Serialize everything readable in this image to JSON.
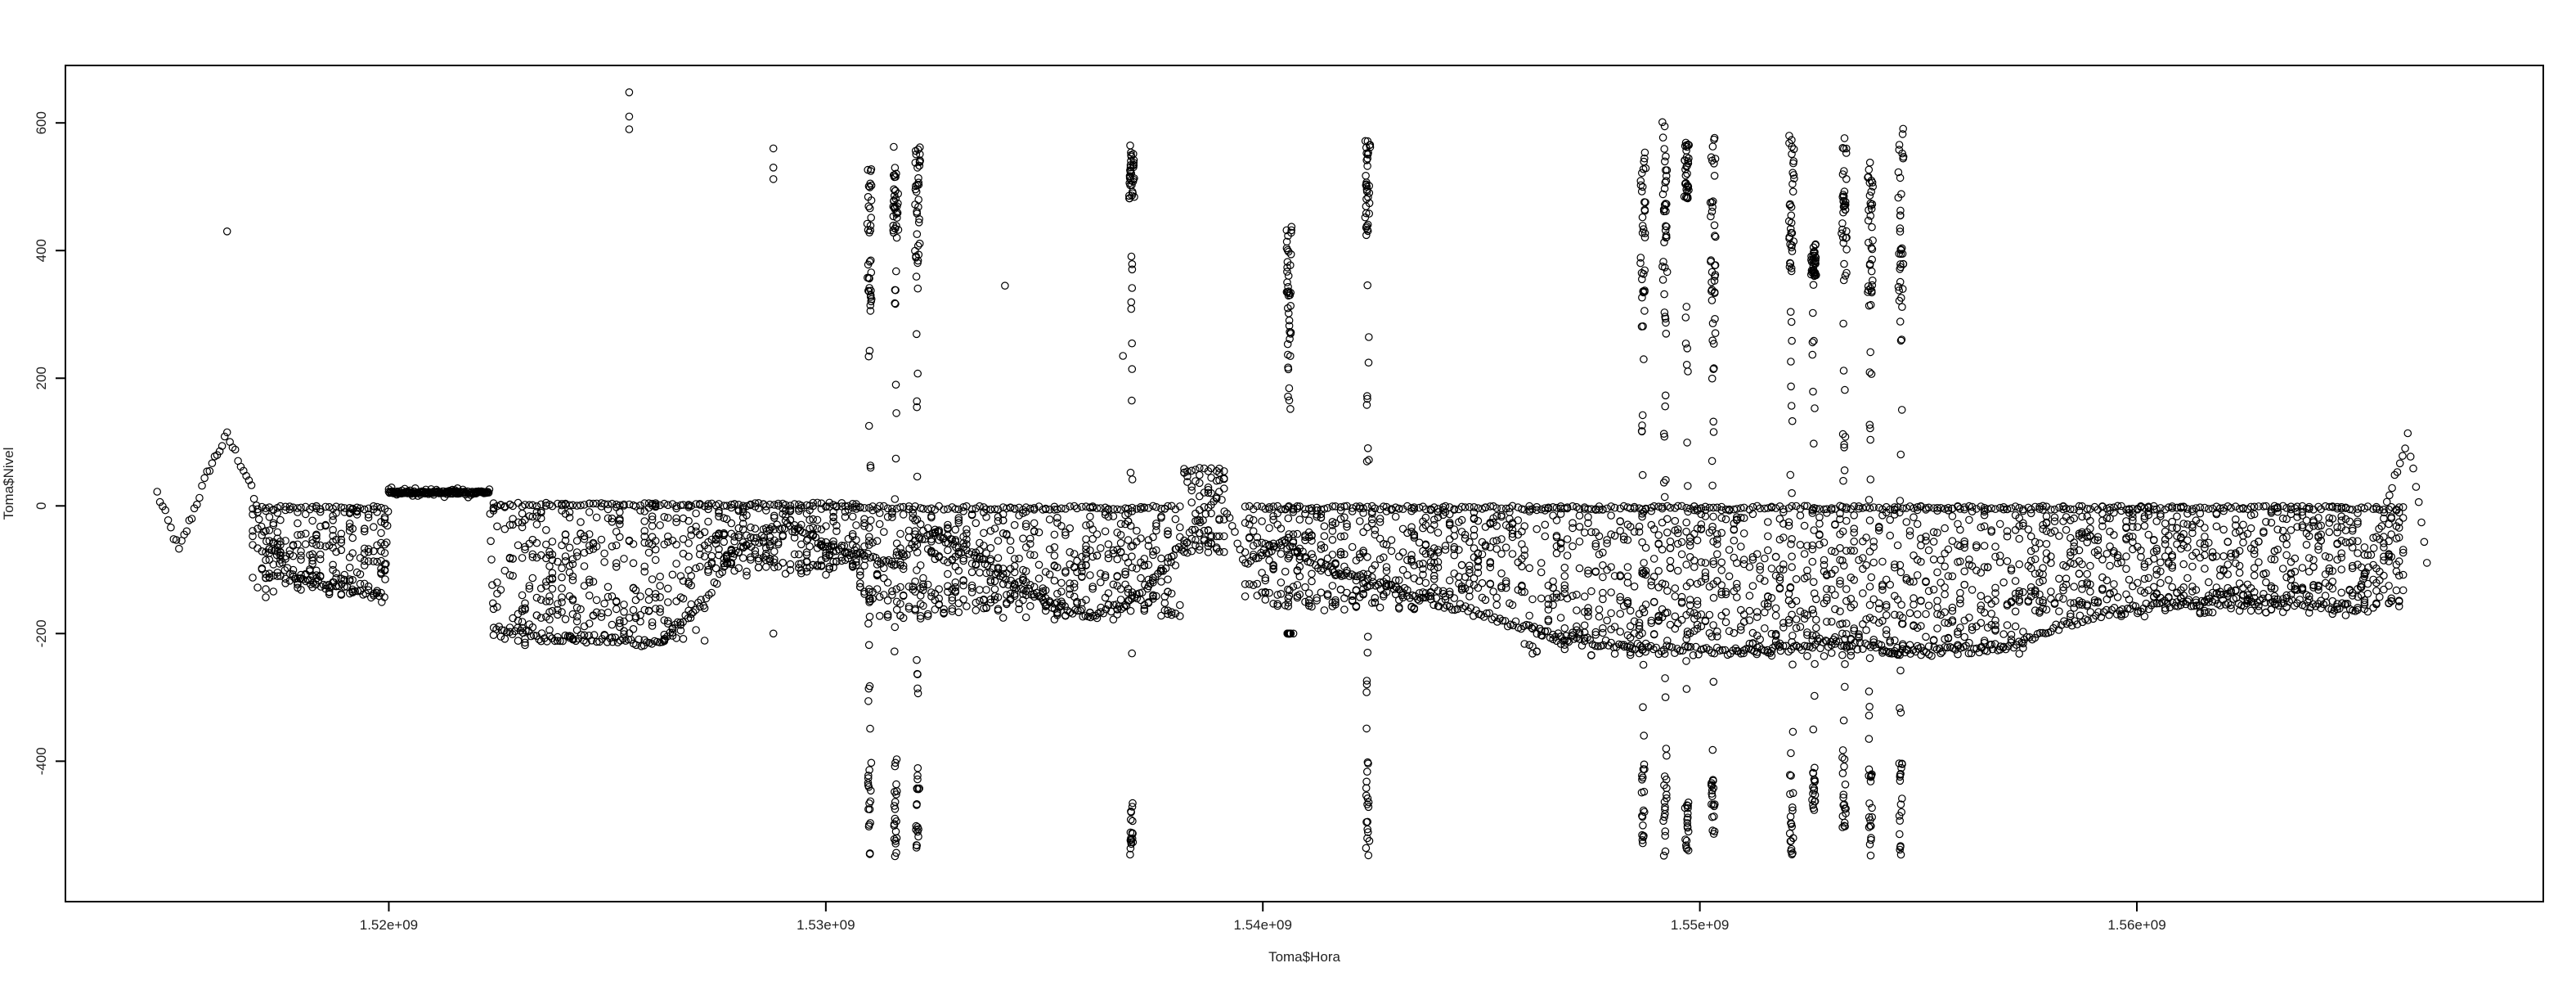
{
  "chart_data": {
    "type": "scatter",
    "title": "",
    "xlabel": "Toma$Hora",
    "ylabel": "Toma$Nivel",
    "xlim": [
      1512600000,
      1569300000
    ],
    "ylim": [
      -620,
      690
    ],
    "x_ticks": [
      {
        "value": 1520000000,
        "label": "1.52e+09"
      },
      {
        "value": 1530000000,
        "label": "1.53e+09"
      },
      {
        "value": 1540000000,
        "label": "1.54e+09"
      },
      {
        "value": 1550000000,
        "label": "1.55e+09"
      },
      {
        "value": 1560000000,
        "label": "1.56e+09"
      }
    ],
    "y_ticks": [
      {
        "value": -400,
        "label": "-400"
      },
      {
        "value": -200,
        "label": "-200"
      },
      {
        "value": 0,
        "label": "0"
      },
      {
        "value": 200,
        "label": "200"
      },
      {
        "value": 400,
        "label": "400"
      },
      {
        "value": 600,
        "label": "600"
      }
    ],
    "marker": "open-circle",
    "marker_color": "#000000",
    "grid": false,
    "legend": "none",
    "trend": [
      [
        1514700000,
        20
      ],
      [
        1515200000,
        -70
      ],
      [
        1515900000,
        60
      ],
      [
        1516300000,
        110
      ],
      [
        1516800000,
        40
      ],
      [
        1517200000,
        -60
      ],
      [
        1517800000,
        -110
      ],
      [
        1518800000,
        -125
      ],
      [
        1519900000,
        -145
      ],
      [
        1520000000,
        22
      ],
      [
        1522300000,
        20
      ],
      [
        1522400000,
        -190
      ],
      [
        1523500000,
        -205
      ],
      [
        1525000000,
        -210
      ],
      [
        1526200000,
        -215
      ],
      [
        1527200000,
        -150
      ],
      [
        1528000000,
        -70
      ],
      [
        1529000000,
        -30
      ],
      [
        1530000000,
        -60
      ],
      [
        1531500000,
        -90
      ],
      [
        1532500000,
        -40
      ],
      [
        1534000000,
        -110
      ],
      [
        1535000000,
        -150
      ],
      [
        1536000000,
        -170
      ],
      [
        1537000000,
        -150
      ],
      [
        1538200000,
        -60
      ],
      [
        1539000000,
        20
      ],
      [
        1539600000,
        -90
      ],
      [
        1540500000,
        -60
      ],
      [
        1541500000,
        -100
      ],
      [
        1543000000,
        -130
      ],
      [
        1545000000,
        -170
      ],
      [
        1547000000,
        -210
      ],
      [
        1549000000,
        -225
      ],
      [
        1551000000,
        -230
      ],
      [
        1553000000,
        -215
      ],
      [
        1555000000,
        -230
      ],
      [
        1557000000,
        -220
      ],
      [
        1559000000,
        -170
      ],
      [
        1561000000,
        -150
      ],
      [
        1563000000,
        -150
      ],
      [
        1565000000,
        -160
      ],
      [
        1566200000,
        110
      ],
      [
        1566700000,
        -110
      ]
    ],
    "band_segments": [
      [
        1516900000,
        1520000000,
        -145,
        0
      ],
      [
        1522400000,
        1527300000,
        -220,
        5
      ],
      [
        1527300000,
        1530800000,
        -110,
        5
      ],
      [
        1530800000,
        1538200000,
        -180,
        0
      ],
      [
        1538200000,
        1539200000,
        -80,
        60
      ],
      [
        1539600000,
        1546000000,
        -170,
        0
      ],
      [
        1546000000,
        1557500000,
        -240,
        0
      ],
      [
        1557500000,
        1566200000,
        -175,
        0
      ]
    ],
    "flat_segment": [
      1520000000,
      1522300000,
      21
    ],
    "bursts": [
      {
        "x": 1531000000,
        "upper": [
          300,
          530
        ],
        "lower": [
          -550,
          -400
        ]
      },
      {
        "x": 1531600000,
        "upper": [
          420,
          575
        ],
        "lower": [
          -550,
          -430
        ]
      },
      {
        "x": 1532100000,
        "upper": [
          380,
          570
        ],
        "lower": [
          -540,
          -400
        ]
      },
      {
        "x": 1537000000,
        "upper": [
          480,
          565
        ],
        "lower": [
          -550,
          -450
        ]
      },
      {
        "x": 1540600000,
        "upper": [
          250,
          440
        ],
        "lower": [
          -200,
          -200
        ]
      },
      {
        "x": 1542400000,
        "upper": [
          420,
          575
        ],
        "lower": [
          -550,
          -400
        ]
      },
      {
        "x": 1548700000,
        "upper": [
          280,
          560
        ],
        "lower": [
          -550,
          -400
        ]
      },
      {
        "x": 1549200000,
        "upper": [
          300,
          615
        ],
        "lower": [
          -550,
          -380
        ]
      },
      {
        "x": 1549700000,
        "upper": [
          480,
          570
        ],
        "lower": [
          -540,
          -450
        ]
      },
      {
        "x": 1550300000,
        "upper": [
          270,
          580
        ],
        "lower": [
          -545,
          -420
        ]
      },
      {
        "x": 1552100000,
        "upper": [
          360,
          580
        ],
        "lower": [
          -550,
          -420
        ]
      },
      {
        "x": 1552600000,
        "upper": [
          360,
          410
        ],
        "lower": [
          -480,
          -400
        ]
      },
      {
        "x": 1553300000,
        "upper": [
          360,
          580
        ],
        "lower": [
          -520,
          -380
        ]
      },
      {
        "x": 1553900000,
        "upper": [
          330,
          540
        ],
        "lower": [
          -550,
          -420
        ]
      },
      {
        "x": 1554600000,
        "upper": [
          300,
          615
        ],
        "lower": [
          -550,
          -400
        ]
      }
    ],
    "outliers": [
      [
        1516300000,
        430
      ],
      [
        1525500000,
        648
      ],
      [
        1525500000,
        610
      ],
      [
        1525500000,
        590
      ],
      [
        1528800000,
        560
      ],
      [
        1528800000,
        530
      ],
      [
        1528800000,
        512
      ],
      [
        1528800000,
        -200
      ],
      [
        1534100000,
        345
      ],
      [
        1536800000,
        235
      ],
      [
        1537000000,
        165
      ],
      [
        1540700000,
        -200
      ]
    ]
  }
}
